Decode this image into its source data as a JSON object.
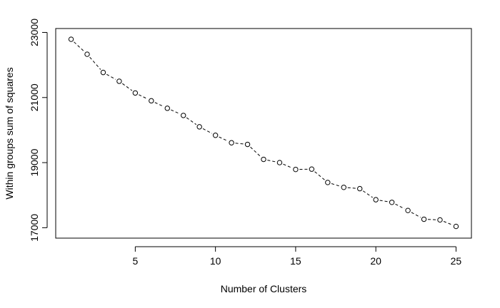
{
  "chart_data": {
    "type": "line",
    "xlabel": "Number of Clusters",
    "ylabel": "Within groups sum of squares",
    "xlim": [
      0.04,
      25.96
    ],
    "ylim": [
      16680,
      23120
    ],
    "x_ticks": [
      5,
      10,
      15,
      20,
      25
    ],
    "y_ticks": [
      17000,
      19000,
      21000,
      23000
    ],
    "x_tick_labels": [
      "5",
      "10",
      "15",
      "20",
      "25"
    ],
    "y_tick_labels": [
      "17000",
      "19000",
      "21000",
      "23000"
    ],
    "grid": false,
    "series": [
      {
        "line_style": "dashed",
        "marker": "open-circle",
        "x": [
          1,
          2,
          3,
          4,
          5,
          6,
          7,
          8,
          9,
          10,
          11,
          12,
          13,
          14,
          15,
          16,
          17,
          18,
          19,
          20,
          21,
          22,
          23,
          24,
          25
        ],
        "y": [
          22790,
          22330,
          21770,
          21500,
          21140,
          20900,
          20670,
          20450,
          20100,
          19840,
          19610,
          19560,
          19100,
          19000,
          18790,
          18800,
          18390,
          18240,
          18200,
          17860,
          17780,
          17530,
          17260,
          17240,
          17040
        ]
      }
    ]
  }
}
